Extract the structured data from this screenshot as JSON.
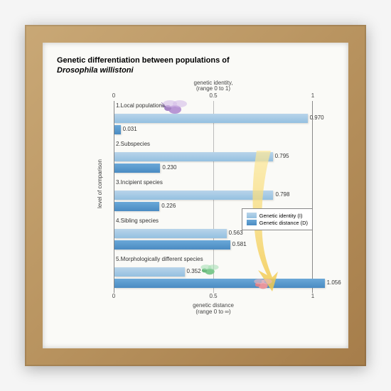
{
  "title_line1": "Genetic differentiation between populations of",
  "title_line2_italic": "Drosophila willistoni",
  "top_axis": {
    "label_line1": "genetic identity,",
    "label_line2": "(range 0 to 1)",
    "ticks": [
      "0",
      "0.5",
      "1"
    ]
  },
  "bottom_axis": {
    "label_line1": "genetic distance",
    "label_line2": "(range 0 to ∞)",
    "ticks": [
      "0",
      "0.5",
      "1"
    ]
  },
  "y_axis_label": "level of comparison",
  "legend": {
    "identity": "Genetic identity (I)",
    "distance": "Genetic distance (D)"
  },
  "colors": {
    "identity_bar": "#a8cce6",
    "distance_bar": "#5a98cc",
    "frame": "#b8935f",
    "background": "#fafaf7",
    "grid": "#bbbbbb",
    "text": "#333333",
    "arrow": "#f5d776",
    "fly_purple": "#b896d4",
    "fly_green": "#7ec98f",
    "fly_pink": "#e8959c"
  },
  "max_value": 1.1,
  "groups": [
    {
      "label": "1.Local populations",
      "identity": 0.97,
      "distance": 0.031,
      "identity_display": "0.970",
      "distance_display": "0.031"
    },
    {
      "label": "2.Subspecies",
      "identity": 0.795,
      "distance": 0.23,
      "identity_display": "0.795",
      "distance_display": "0.230"
    },
    {
      "label": "3.Incipient species",
      "identity": 0.798,
      "distance": 0.226,
      "identity_display": "0.798",
      "distance_display": "0.226"
    },
    {
      "label": "4.Sibling species",
      "identity": 0.563,
      "distance": 0.581,
      "identity_display": "0.563",
      "distance_display": "0.581"
    },
    {
      "label": "5.Morphologically different species",
      "identity": 0.352,
      "distance": 1.056,
      "identity_display": "0.352",
      "distance_display": "1.056"
    }
  ]
}
